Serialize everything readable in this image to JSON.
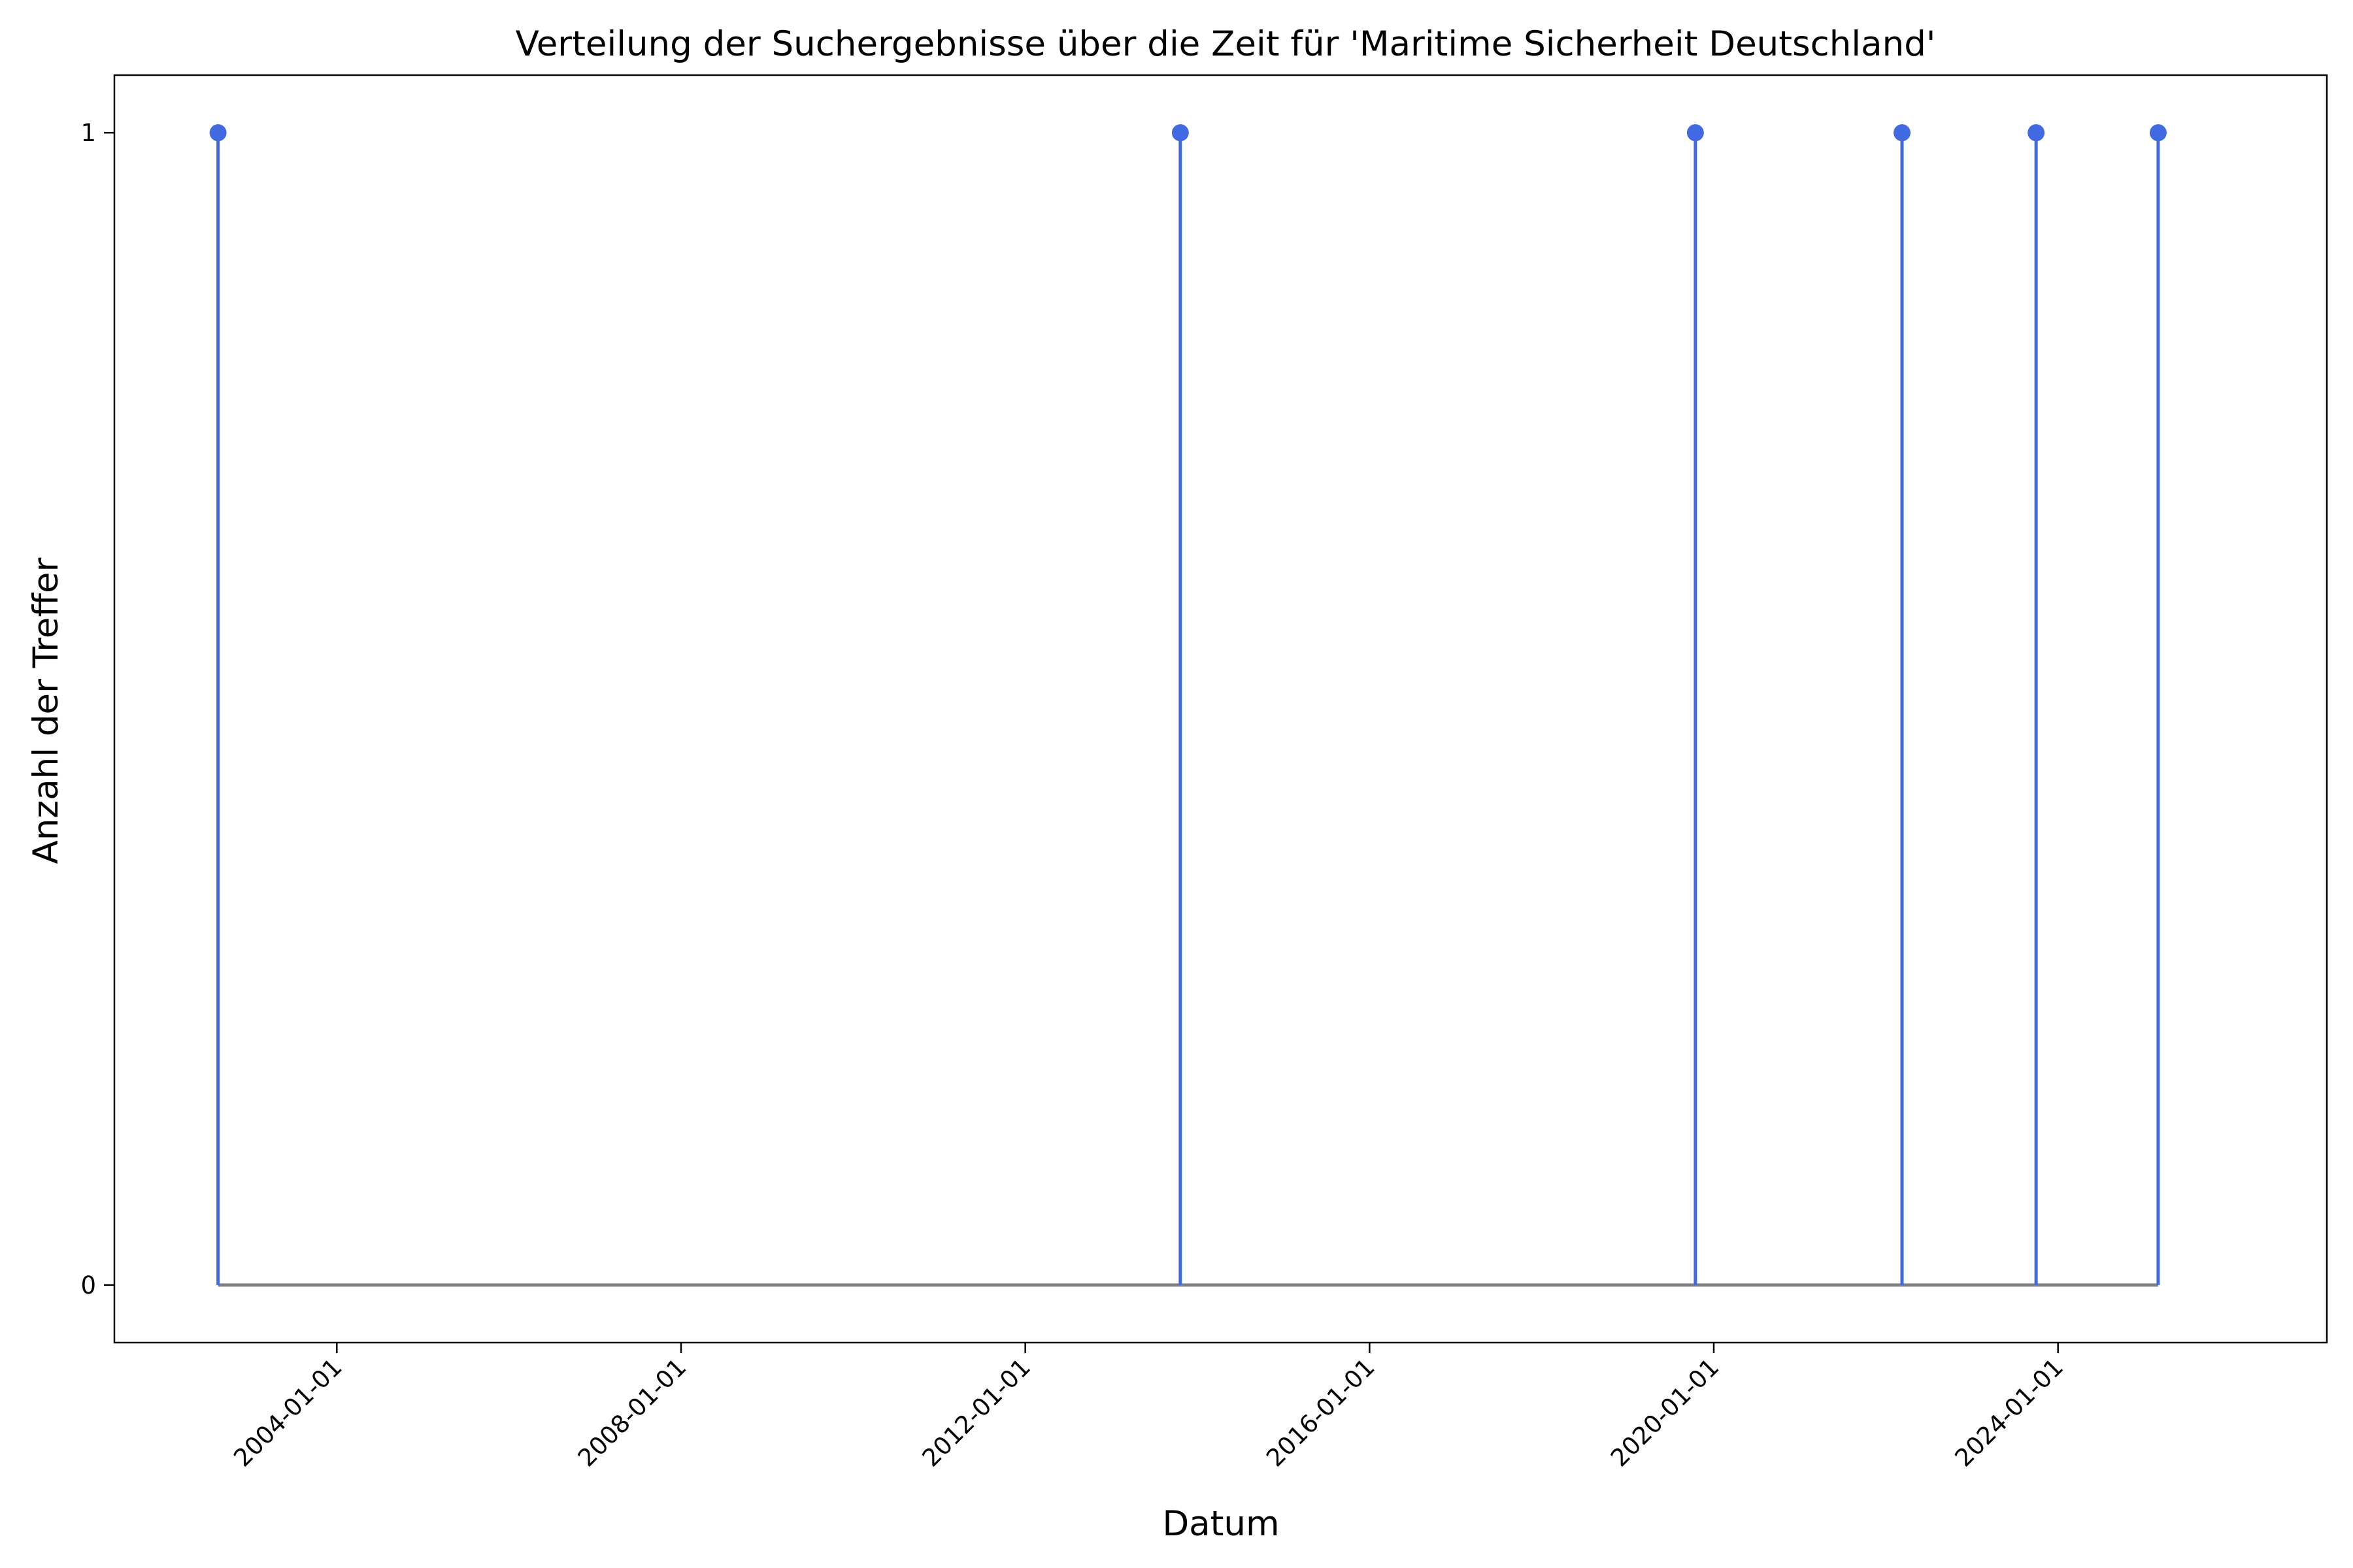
{
  "chart_data": {
    "type": "stem",
    "title": "Verteilung der Suchergebnisse über die Zeit für 'Maritime Sicherheit Deutschland'",
    "xlabel": "Datum",
    "ylabel": "Anzahl der Treffer",
    "x_type": "date",
    "xlim": [
      "2001-06-01",
      "2027-02-15"
    ],
    "ylim": [
      -0.05,
      1.05
    ],
    "x_ticks": [
      "2004-01-01",
      "2008-01-01",
      "2012-01-01",
      "2016-01-01",
      "2020-01-01",
      "2024-01-01"
    ],
    "y_ticks": [
      0,
      1
    ],
    "points": [
      {
        "date": "2002-08-15",
        "value": 1
      },
      {
        "date": "2013-10-20",
        "value": 1
      },
      {
        "date": "2019-10-15",
        "value": 1
      },
      {
        "date": "2022-03-10",
        "value": 1
      },
      {
        "date": "2023-09-30",
        "value": 1
      },
      {
        "date": "2025-03-01",
        "value": 1
      }
    ],
    "baseline": {
      "value": 0,
      "from": "2002-08-15",
      "to": "2025-03-01"
    },
    "grid": false,
    "colors": {
      "stem": "#4169e1",
      "marker": "#4169e1",
      "baseline": "#808080"
    }
  }
}
